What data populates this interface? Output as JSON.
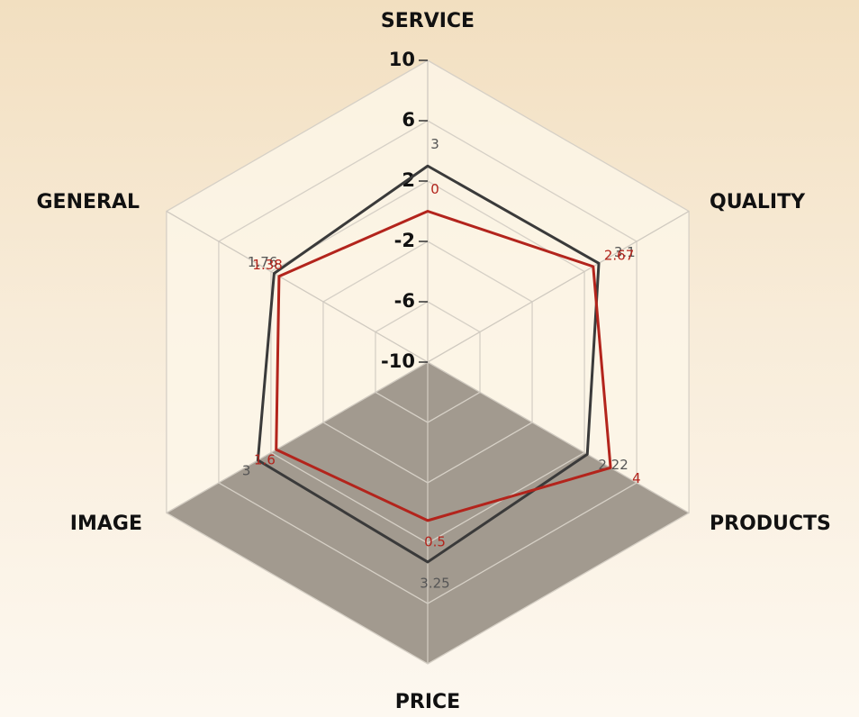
{
  "chart_data": {
    "type": "radar",
    "categories": [
      "SERVICE",
      "QUALITY",
      "PRODUCTS",
      "PRICE",
      "IMAGE",
      "GENERAL"
    ],
    "series": [
      {
        "color": "#3a3a3a",
        "values": [
          3,
          3.1,
          2.22,
          3.25,
          3,
          1.76
        ]
      },
      {
        "color": "#b3241c",
        "values": [
          0,
          2.67,
          4,
          0.5,
          1.6,
          1.38
        ]
      }
    ],
    "rlim": [
      -10,
      10
    ],
    "rticks": [
      -10,
      -6,
      -2,
      2,
      6,
      10
    ],
    "grid": true
  }
}
